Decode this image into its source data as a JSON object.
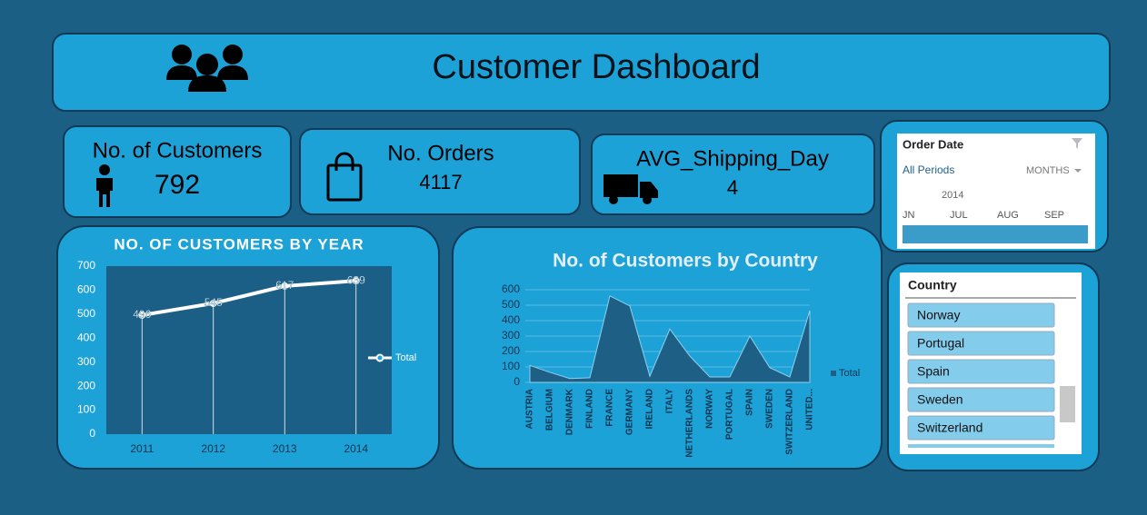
{
  "header": {
    "title": "Customer Dashboard"
  },
  "kpis": [
    {
      "label": "No. of Customers",
      "value": 792
    },
    {
      "label": "No. Orders",
      "value": 4117
    },
    {
      "label": "AVG_Shipping_Day",
      "value": 4
    }
  ],
  "order_date": {
    "title": "Order Date",
    "periods": "All Periods",
    "view": "MONTHS",
    "year": "2014",
    "months": [
      "JN",
      "JUL",
      "AUG",
      "SEP"
    ]
  },
  "country_slicer": {
    "title": "Country",
    "items": [
      "Norway",
      "Portugal",
      "Spain",
      "Sweden",
      "Switzerland"
    ]
  },
  "chart_data": [
    {
      "type": "line",
      "title": "NO. OF CUSTOMERS BY YEAR",
      "categories": [
        "2011",
        "2012",
        "2013",
        "2014"
      ],
      "series": [
        {
          "name": "Total",
          "color": "#ffffff",
          "values": [
            496,
            545,
            617,
            639
          ]
        }
      ],
      "ylim": [
        0,
        700
      ],
      "yticks": [
        0,
        100,
        200,
        300,
        400,
        500,
        600,
        700
      ],
      "legend": "right"
    },
    {
      "type": "area",
      "title": "No. of Customers by Country",
      "categories": [
        "AUSTRIA",
        "BELGIUM",
        "DENMARK",
        "FINLAND",
        "FRANCE",
        "GERMANY",
        "IRELAND",
        "ITALY",
        "NETHERLANDS",
        "NORWAY",
        "PORTUGAL",
        "SPAIN",
        "SWEDEN",
        "SWITZERLAND",
        "UNITED..."
      ],
      "series": [
        {
          "name": "Total",
          "color": "#1d5f85",
          "values": [
            110,
            65,
            25,
            30,
            560,
            495,
            40,
            345,
            170,
            35,
            35,
            300,
            95,
            35,
            465
          ]
        }
      ],
      "ylim": [
        0,
        600
      ],
      "yticks": [
        0,
        100,
        200,
        300,
        400,
        500,
        600
      ],
      "grid": true,
      "legend": "right"
    }
  ]
}
